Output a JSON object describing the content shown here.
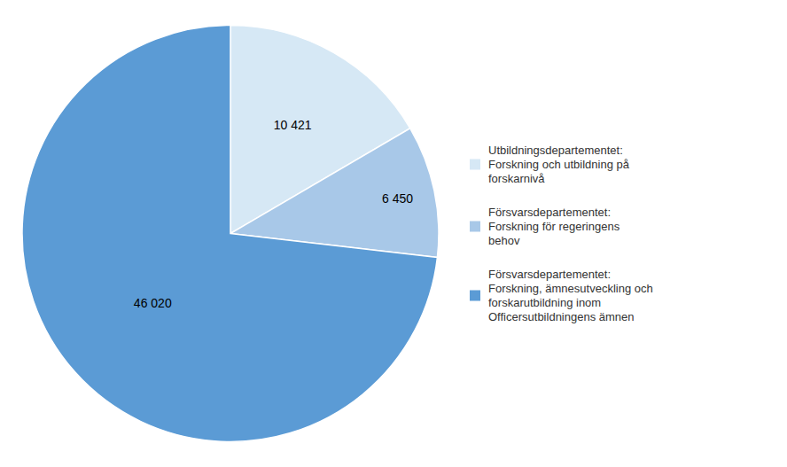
{
  "chart_data": {
    "type": "pie",
    "categories": [
      "Utbildningsdepartementet:\nForskning och utbildning på\nforskarnivå",
      "Försvarsdepartementet:\nForskning för regeringens\nbehov",
      "Försvarsdepartementet:\nForskning, ämnesutveckling och\nforskarutbildning inom\nOfficersutbildningens ämnen"
    ],
    "values": [
      10421,
      6450,
      46020
    ],
    "value_labels": [
      "10 421",
      "6 450",
      "46 020"
    ],
    "colors": [
      "#d6e8f5",
      "#a8c8e8",
      "#5b9bd5"
    ],
    "data_labels": true,
    "legend": "right"
  }
}
